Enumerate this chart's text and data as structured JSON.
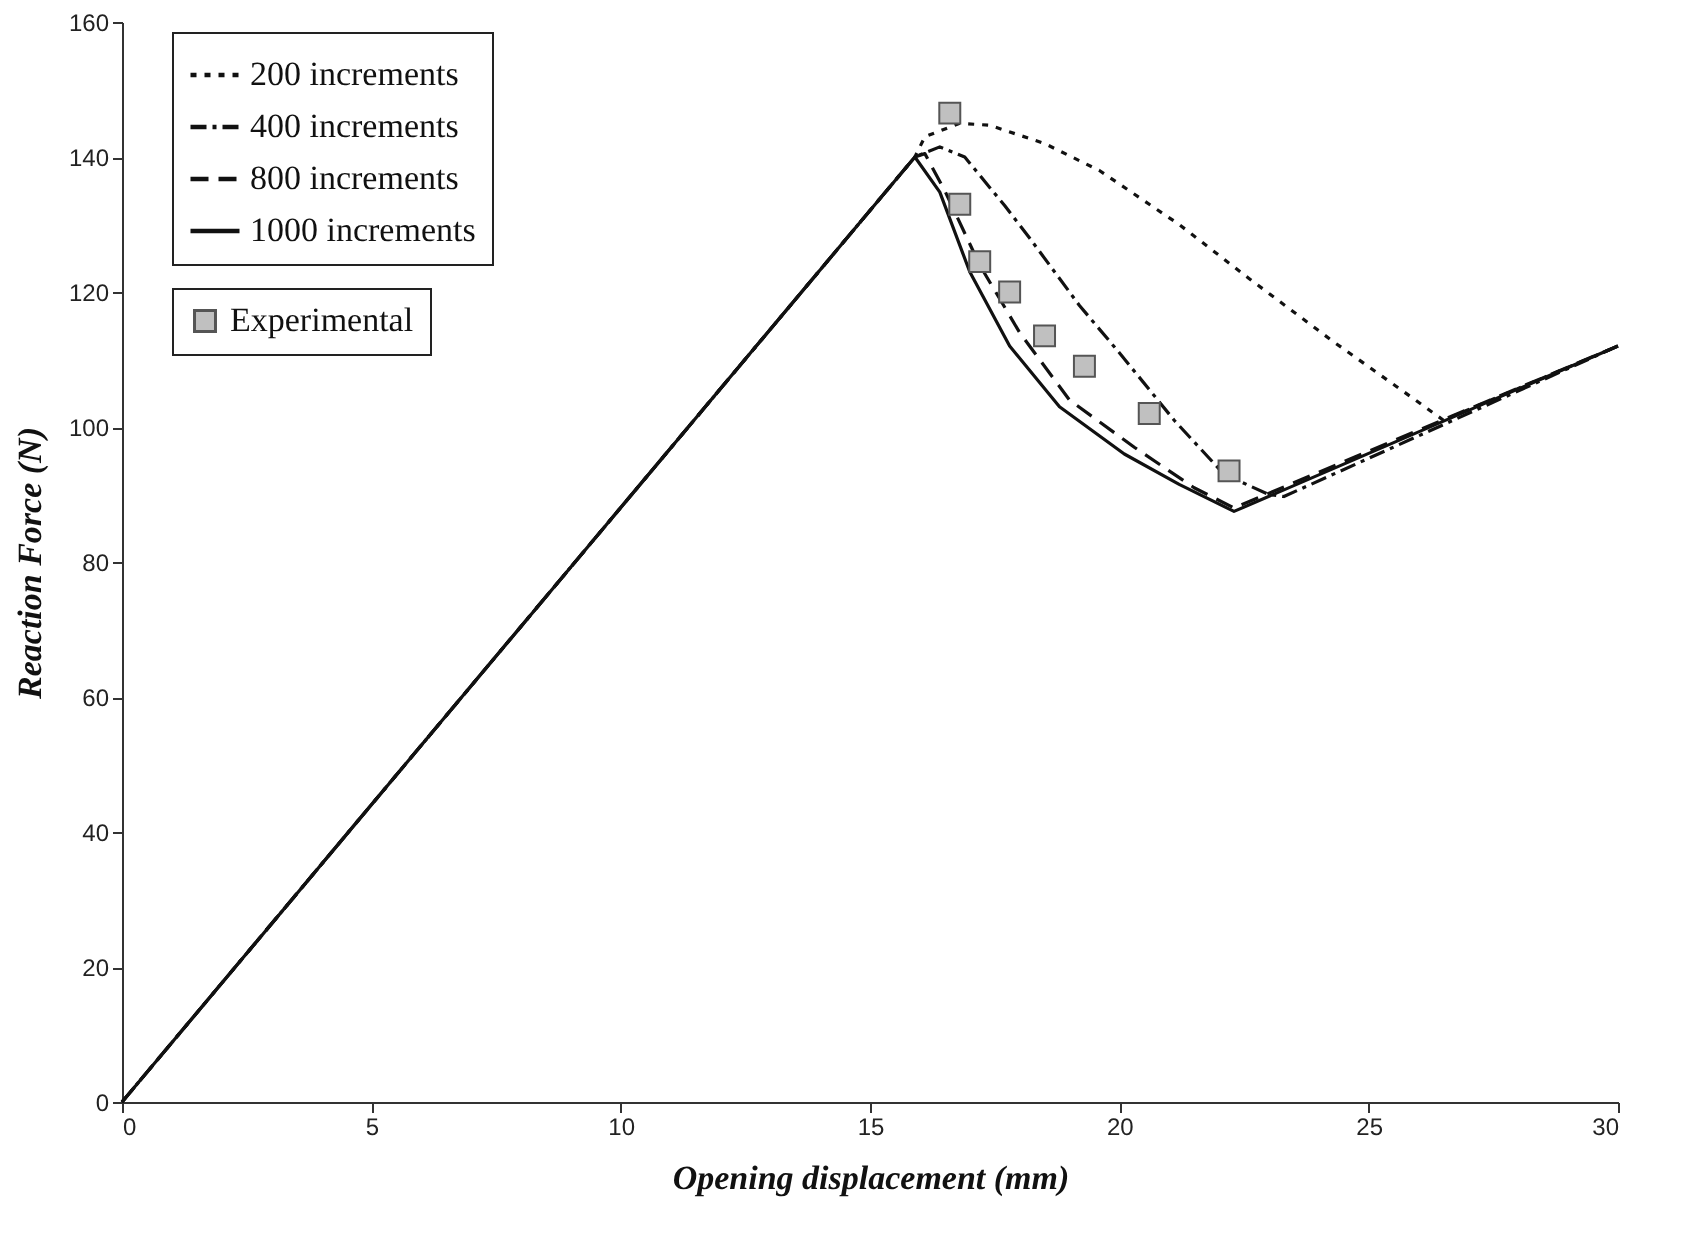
{
  "chart_data": {
    "type": "line",
    "xlabel": "Opening displacement (mm)",
    "ylabel": "Reaction Force (N)",
    "xlim": [
      0,
      30
    ],
    "ylim": [
      0,
      160
    ],
    "xticks": [
      0,
      5,
      10,
      15,
      20,
      25,
      30
    ],
    "yticks": [
      0,
      20,
      40,
      60,
      80,
      100,
      120,
      140,
      160
    ],
    "grid": false,
    "legend": "top left",
    "series": [
      {
        "name": "200 increments",
        "color": "#111111",
        "line_style": "dotted",
        "x": [
          0,
          15.9,
          16.1,
          16.8,
          17.4,
          18.5,
          19.6,
          21.2,
          22.6,
          24.3,
          25.9,
          26.5,
          30
        ],
        "values": [
          0,
          140,
          143,
          145,
          144.7,
          142,
          138,
          130,
          122,
          112.6,
          104.2,
          101,
          112
        ]
      },
      {
        "name": "400 increments",
        "color": "#111111",
        "line_style": "dashdot",
        "x": [
          0,
          15.9,
          16.4,
          16.9,
          17.7,
          18.2,
          19.2,
          20,
          21.1,
          22.1,
          23,
          23.3,
          30
        ],
        "values": [
          0,
          140,
          141.5,
          140,
          132.8,
          128,
          118,
          111,
          101,
          93,
          90,
          89.7,
          112
        ]
      },
      {
        "name": "800 increments",
        "color": "#111111",
        "line_style": "dashed",
        "x": [
          0,
          15.9,
          16.1,
          16.5,
          17.2,
          18,
          19,
          20.3,
          21.5,
          22.3,
          30
        ],
        "values": [
          0,
          140,
          140.5,
          135,
          124,
          114,
          104,
          97,
          91,
          88,
          112
        ]
      },
      {
        "name": "1000 increments",
        "color": "#111111",
        "line_style": "solid",
        "x": [
          0,
          15.9,
          16.4,
          17,
          17.8,
          18.8,
          20.1,
          21.2,
          22.3,
          30
        ],
        "values": [
          0,
          140,
          134.8,
          123,
          112,
          103,
          96,
          91.5,
          87.5,
          112
        ]
      },
      {
        "name": "Experimental",
        "type": "scatter",
        "marker": "square",
        "color": "#c0c0c0",
        "x": [
          16.6,
          16.8,
          17.2,
          17.8,
          18.5,
          19.3,
          20.6,
          22.2
        ],
        "values": [
          146.5,
          133,
          124.5,
          120,
          113.5,
          109,
          102,
          93.5
        ]
      }
    ]
  }
}
